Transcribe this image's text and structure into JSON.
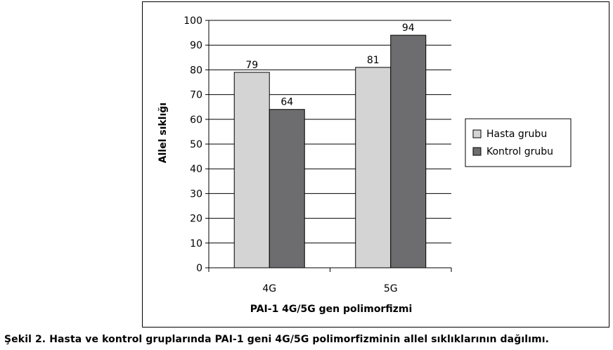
{
  "caption": "Şekil 2. Hasta ve kontrol gruplarında PAI-1 geni 4G/5G polimorfizminin allel sıklıklarının dağılımı.",
  "chart_data": {
    "type": "bar",
    "title": "",
    "xlabel": "PAI-1 4G/5G gen polimorfizmi",
    "ylabel": "Allel sıklığı",
    "categories": [
      "4G",
      "5G"
    ],
    "series": [
      {
        "name": "Hasta grubu",
        "values": [
          79,
          81
        ],
        "color": "#d4d4d4"
      },
      {
        "name": "Kontrol grubu",
        "values": [
          64,
          94
        ],
        "color": "#6d6d6f"
      }
    ],
    "ylim": [
      0,
      100
    ],
    "yticks": [
      0,
      10,
      20,
      30,
      40,
      50,
      60,
      70,
      80,
      90,
      100
    ],
    "grid": true,
    "legend_position": "right"
  }
}
